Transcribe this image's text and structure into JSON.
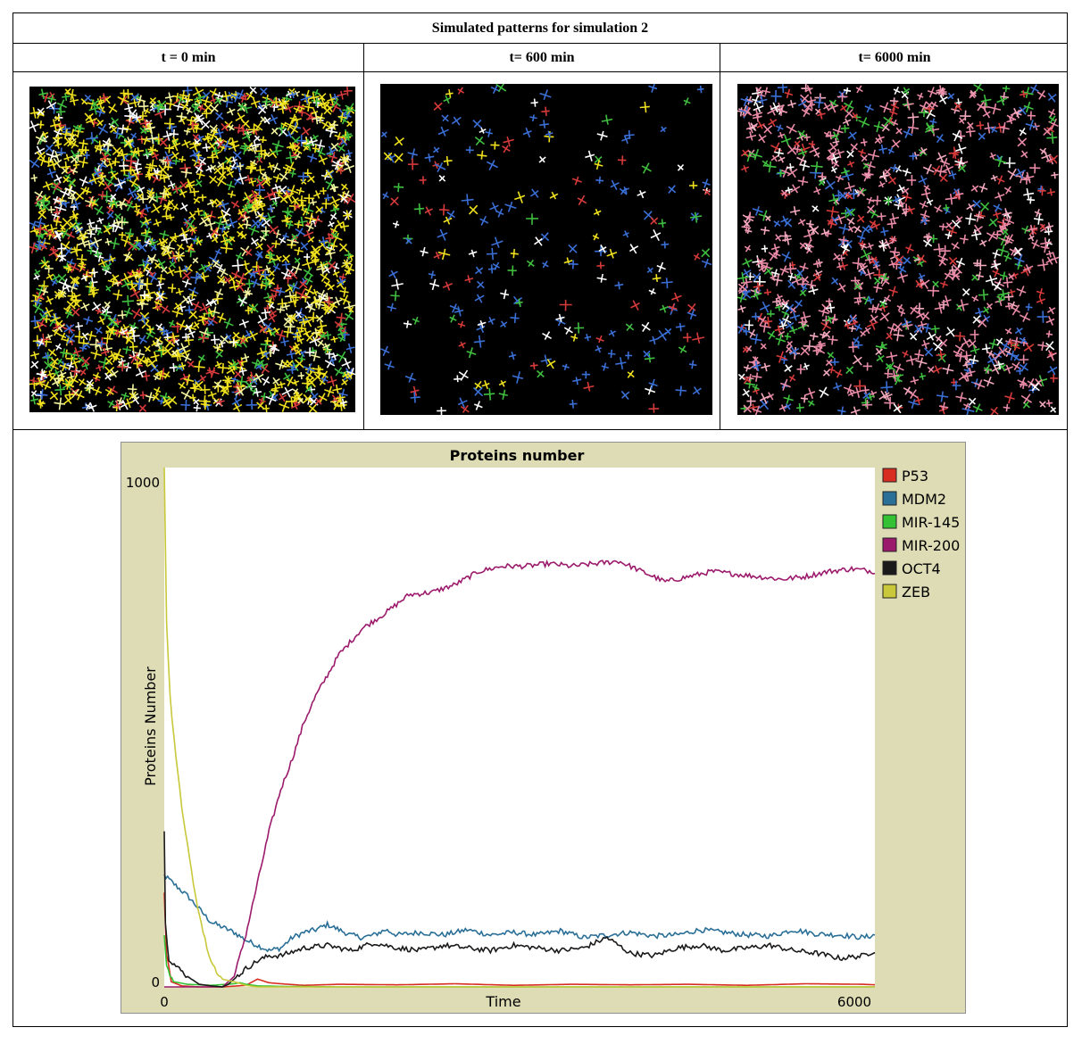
{
  "figure": {
    "title": "Simulated patterns for simulation 2",
    "columns": [
      {
        "label": "t = 0 min"
      },
      {
        "label": "t= 600 min"
      },
      {
        "label": "t= 6000 min"
      }
    ]
  },
  "chart_data": {
    "type": "line",
    "title": "Proteins number",
    "xlabel": "Time",
    "ylabel": "Proteins Number",
    "xlim": [
      0,
      6100
    ],
    "ylim": [
      0,
      1000
    ],
    "x_ticks": [
      "0",
      "6000"
    ],
    "y_ticks": [
      "0",
      "1000"
    ],
    "legend_position": "right",
    "series": [
      {
        "name": "P53",
        "color": "#d62d20",
        "x": [
          0,
          20,
          60,
          150,
          300,
          500,
          700,
          800,
          900,
          1000,
          1200,
          1500,
          2000,
          2500,
          3000,
          3500,
          4000,
          4500,
          5000,
          5500,
          6000,
          6100
        ],
        "y": [
          180,
          60,
          10,
          2,
          0,
          0,
          3,
          15,
          8,
          6,
          3,
          5,
          4,
          6,
          3,
          5,
          4,
          5,
          3,
          6,
          5,
          4
        ]
      },
      {
        "name": "MDM2",
        "color": "#2a6f97",
        "x": [
          0,
          100,
          200,
          300,
          400,
          500,
          600,
          700,
          800,
          900,
          1000,
          1100,
          1200,
          1300,
          1400,
          1500,
          1600,
          1700,
          1800,
          1900,
          2000,
          2200,
          2400,
          2600,
          2800,
          3000,
          3200,
          3400,
          3600,
          3800,
          4000,
          4200,
          4400,
          4600,
          4800,
          5000,
          5200,
          5400,
          5600,
          5800,
          6000,
          6100
        ],
        "y": [
          215,
          195,
          175,
          150,
          125,
          115,
          105,
          90,
          80,
          70,
          75,
          95,
          105,
          110,
          120,
          110,
          100,
          95,
          100,
          110,
          100,
          105,
          100,
          110,
          100,
          105,
          100,
          108,
          95,
          100,
          105,
          98,
          100,
          110,
          105,
          100,
          98,
          110,
          102,
          100,
          95,
          100
        ]
      },
      {
        "name": "MIR-145",
        "color": "#34c234",
        "x": [
          0,
          20,
          80,
          200,
          400,
          600,
          650,
          700,
          800,
          1000,
          1500,
          2000,
          3000,
          4000,
          5000,
          6000,
          6100
        ],
        "y": [
          100,
          40,
          10,
          5,
          3,
          6,
          8,
          5,
          2,
          1,
          0,
          0,
          0,
          0,
          0,
          0,
          0
        ]
      },
      {
        "name": "MIR-200",
        "color": "#9c1a6c",
        "x": [
          0,
          300,
          500,
          600,
          700,
          800,
          900,
          1000,
          1100,
          1200,
          1300,
          1400,
          1500,
          1700,
          1900,
          2100,
          2300,
          2500,
          2700,
          2900,
          3100,
          3300,
          3500,
          3700,
          3900,
          4100,
          4300,
          4500,
          4700,
          4900,
          5100,
          5300,
          5500,
          5700,
          5900,
          6100
        ],
        "y": [
          0,
          0,
          0,
          20,
          100,
          200,
          300,
          380,
          440,
          510,
          560,
          600,
          640,
          690,
          720,
          755,
          760,
          775,
          800,
          810,
          810,
          815,
          810,
          815,
          820,
          800,
          780,
          790,
          800,
          795,
          790,
          785,
          790,
          800,
          805,
          800
        ]
      },
      {
        "name": "OCT4",
        "color": "#1a1a1a",
        "x": [
          0,
          10,
          40,
          100,
          200,
          300,
          400,
          500,
          550,
          600,
          700,
          800,
          900,
          1000,
          1200,
          1400,
          1600,
          1800,
          2000,
          2200,
          2400,
          2600,
          2800,
          3000,
          3200,
          3400,
          3600,
          3800,
          4000,
          4200,
          4400,
          4600,
          4800,
          5000,
          5200,
          5400,
          5600,
          5800,
          6000,
          6100
        ],
        "y": [
          300,
          120,
          55,
          40,
          20,
          5,
          2,
          0,
          5,
          15,
          35,
          50,
          60,
          60,
          75,
          80,
          70,
          85,
          75,
          70,
          80,
          75,
          70,
          80,
          75,
          70,
          75,
          95,
          65,
          60,
          75,
          80,
          70,
          75,
          80,
          70,
          65,
          55,
          60,
          70
        ]
      },
      {
        "name": "ZEB",
        "color": "#c8c83a",
        "x": [
          0,
          20,
          50,
          100,
          150,
          200,
          250,
          300,
          350,
          400,
          450,
          500,
          550,
          600,
          700,
          800,
          1000,
          1500,
          2000,
          3000,
          4000,
          5000,
          6000,
          6100
        ],
        "y": [
          1000,
          700,
          560,
          440,
          350,
          270,
          200,
          140,
          90,
          50,
          30,
          15,
          12,
          10,
          3,
          0,
          0,
          0,
          0,
          0,
          0,
          0,
          0,
          0
        ]
      }
    ]
  }
}
